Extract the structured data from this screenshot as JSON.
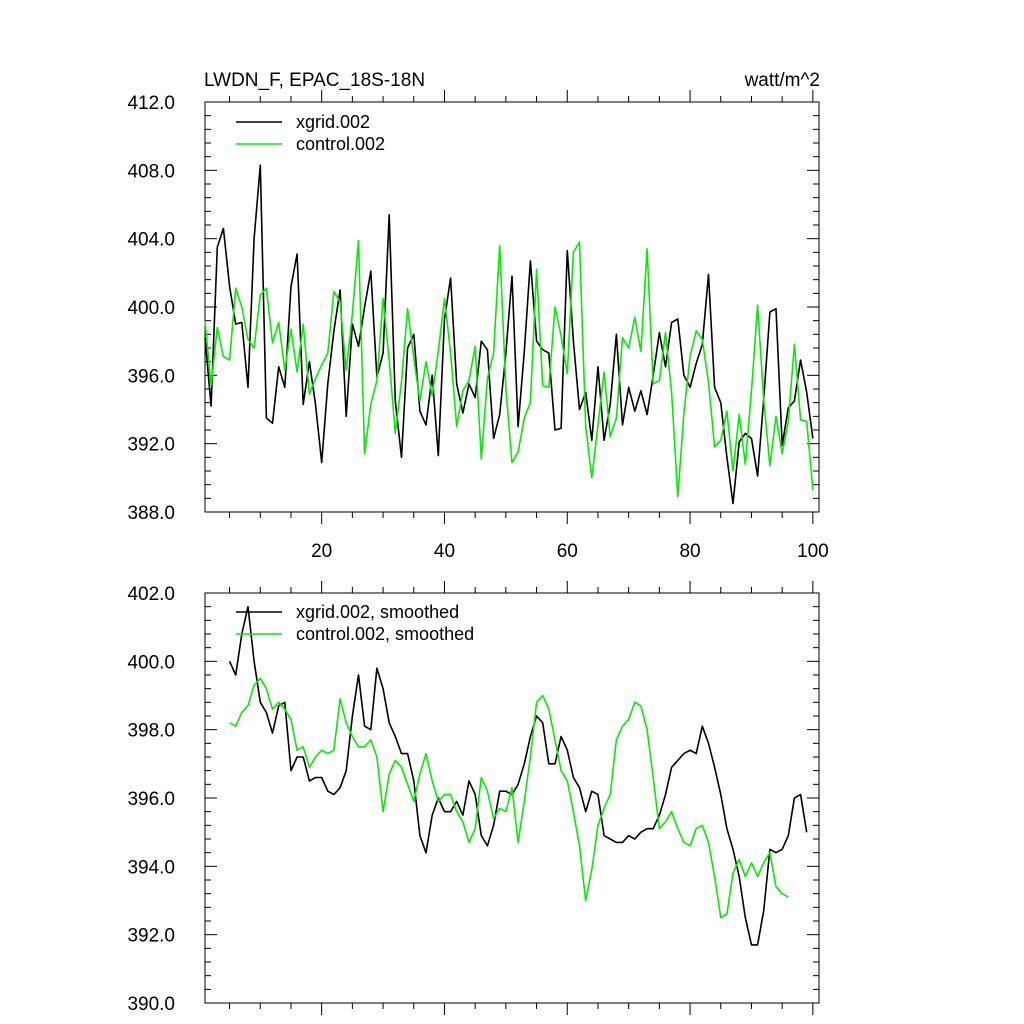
{
  "colors": {
    "xgrid": "#000000",
    "control": "#00ee00"
  },
  "chart_data": [
    {
      "type": "line",
      "title": "LWDN_F, EPAC_18S-18N",
      "units": "watt/m^2",
      "xlim": [
        1,
        101
      ],
      "ylim": [
        388.0,
        412.0
      ],
      "x_ticks": [
        20,
        40,
        60,
        80,
        100
      ],
      "x_tick_labels": [
        "20",
        "40",
        "60",
        "80",
        "100"
      ],
      "y_ticks": [
        388.0,
        392.0,
        396.0,
        400.0,
        404.0,
        408.0,
        412.0
      ],
      "y_tick_labels": [
        "388.0",
        "392.0",
        "396.0",
        "400.0",
        "404.0",
        "408.0",
        "412.0"
      ],
      "x_start": 1,
      "series": [
        {
          "name": "xgrid.002",
          "color": "#000000",
          "values": [
            398.2,
            394.2,
            403.5,
            404.6,
            401.2,
            399.0,
            399.1,
            395.3,
            404.0,
            408.3,
            393.5,
            393.2,
            396.5,
            395.3,
            401.2,
            403.1,
            394.3,
            396.8,
            394.3,
            390.9,
            395.5,
            398.6,
            401.0,
            393.6,
            399.0,
            397.7,
            400.0,
            402.1,
            395.9,
            397.3,
            405.4,
            394.5,
            391.2,
            397.6,
            398.4,
            393.9,
            393.1,
            396.0,
            391.3,
            399.3,
            401.7,
            395.5,
            393.8,
            395.5,
            394.7,
            398.0,
            397.5,
            392.3,
            393.7,
            397.3,
            401.8,
            393.0,
            397.4,
            402.7,
            398.0,
            397.5,
            397.3,
            392.8,
            392.9,
            403.3,
            398.0,
            394.0,
            395.0,
            392.2,
            396.5,
            392.2,
            394.3,
            398.4,
            393.1,
            395.3,
            393.9,
            395.1,
            393.7,
            396.0,
            398.5,
            396.5,
            399.1,
            399.3,
            396.0,
            395.3,
            396.7,
            397.8,
            401.9,
            395.3,
            394.4,
            391.2,
            388.5,
            392.1,
            392.6,
            392.3,
            390.1,
            394.6,
            399.7,
            399.9,
            391.9,
            394.1,
            394.5,
            396.9,
            395.0,
            392.3
          ]
        },
        {
          "name": "control.002",
          "color": "#00ee00",
          "values": [
            399.2,
            395.4,
            398.8,
            397.1,
            396.9,
            401.1,
            400.0,
            398.1,
            397.6,
            400.7,
            401.1,
            397.9,
            399.1,
            396.3,
            398.7,
            396.2,
            399.0,
            394.9,
            395.8,
            396.6,
            397.3,
            400.9,
            400.3,
            396.3,
            399.6,
            403.9,
            391.4,
            394.3,
            395.7,
            400.5,
            396.9,
            392.6,
            395.6,
            399.9,
            397.0,
            394.5,
            396.8,
            394.8,
            397.4,
            400.5,
            397.3,
            393.0,
            395.1,
            395.7,
            397.7,
            391.1,
            395.8,
            397.3,
            403.6,
            395.2,
            390.9,
            391.5,
            393.5,
            394.4,
            402.2,
            395.4,
            395.3,
            400.0,
            398.3,
            396.1,
            403.2,
            403.8,
            393.0,
            390.0,
            393.1,
            396.2,
            392.4,
            393.5,
            398.2,
            397.6,
            399.4,
            397.4,
            403.4,
            395.5,
            395.7,
            398.5,
            395.0,
            388.9,
            393.8,
            397.1,
            398.6,
            398.1,
            395.6,
            391.8,
            392.2,
            393.9,
            390.4,
            393.7,
            390.8,
            395.1,
            400.1,
            394.6,
            390.7,
            393.6,
            391.4,
            393.3,
            397.8,
            393.4,
            393.3,
            389.3
          ]
        }
      ],
      "legend": [
        "xgrid.002",
        "control.002"
      ],
      "legend_position": "top-left"
    },
    {
      "type": "line",
      "title": "",
      "xlim": [
        1,
        101
      ],
      "ylim": [
        390.0,
        402.0
      ],
      "x_ticks": [
        20,
        40,
        60,
        80,
        100
      ],
      "x_tick_labels": [],
      "y_ticks": [
        390.0,
        392.0,
        394.0,
        396.0,
        398.0,
        400.0,
        402.0
      ],
      "y_tick_labels": [
        "390.0",
        "392.0",
        "394.0",
        "396.0",
        "398.0",
        "400.0",
        "402.0"
      ],
      "x_start": 5,
      "series": [
        {
          "name": "xgrid.002, smoothed",
          "color": "#000000",
          "values": [
            400.0,
            399.6,
            400.8,
            401.6,
            400.0,
            398.8,
            398.5,
            397.9,
            398.7,
            398.8,
            396.8,
            397.2,
            397.2,
            396.5,
            396.6,
            396.6,
            396.2,
            396.1,
            396.3,
            396.8,
            398.4,
            399.6,
            398.1,
            398.0,
            399.8,
            399.2,
            398.2,
            397.8,
            397.3,
            397.3,
            396.5,
            394.9,
            394.4,
            395.5,
            396.0,
            395.6,
            395.6,
            395.9,
            395.5,
            396.5,
            396.1,
            394.9,
            394.6,
            395.2,
            396.2,
            396.2,
            396.1,
            396.4,
            397.0,
            397.8,
            398.4,
            398.2,
            397.0,
            397.0,
            397.8,
            397.4,
            396.6,
            396.3,
            395.6,
            396.2,
            396.1,
            394.9,
            394.8,
            394.7,
            394.7,
            394.9,
            394.8,
            395.0,
            395.1,
            395.1,
            395.5,
            396.1,
            396.9,
            397.1,
            397.3,
            397.4,
            397.3,
            398.1,
            397.6,
            396.9,
            396.1,
            395.1,
            394.5,
            393.7,
            392.5,
            391.7,
            391.7,
            392.7,
            394.5,
            394.4,
            394.5,
            394.9,
            396.0,
            396.1,
            395.0
          ]
        },
        {
          "name": "control.002, smoothed",
          "color": "#00ee00",
          "values": [
            398.2,
            398.1,
            398.5,
            398.7,
            399.3,
            399.5,
            399.2,
            398.6,
            398.8,
            398.6,
            398.3,
            397.4,
            397.5,
            396.9,
            397.2,
            397.4,
            397.3,
            397.4,
            398.9,
            398.2,
            397.8,
            397.5,
            397.5,
            397.7,
            397.2,
            395.6,
            396.7,
            397.1,
            396.9,
            396.4,
            395.9,
            396.7,
            397.3,
            396.5,
            395.9,
            396.1,
            396.1,
            395.6,
            395.3,
            394.7,
            395.1,
            396.6,
            396.2,
            395.4,
            395.7,
            395.6,
            396.3,
            394.7,
            395.9,
            397.2,
            398.8,
            399.0,
            398.6,
            397.7,
            396.8,
            396.5,
            395.6,
            394.6,
            393.0,
            393.9,
            395.2,
            395.7,
            396.1,
            397.7,
            398.1,
            398.3,
            398.8,
            398.7,
            398.0,
            396.6,
            395.1,
            395.3,
            395.6,
            395.1,
            394.7,
            394.6,
            395.1,
            395.2,
            394.7,
            393.7,
            392.5,
            392.6,
            393.8,
            394.2,
            393.7,
            394.1,
            393.7,
            394.1,
            394.4,
            393.4,
            393.2,
            393.1
          ]
        }
      ],
      "legend": [
        "xgrid.002, smoothed",
        "control.002, smoothed"
      ],
      "legend_position": "top-left"
    }
  ]
}
